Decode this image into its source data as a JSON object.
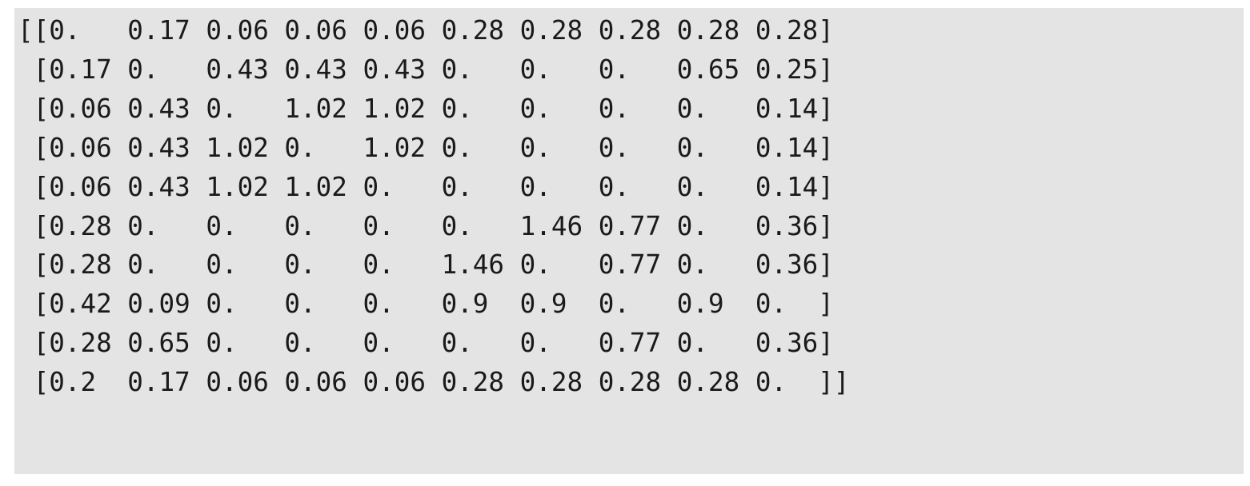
{
  "output": {
    "rows": [
      "[[0.   0.17 0.06 0.06 0.06 0.28 0.28 0.28 0.28 0.28]",
      " [0.17 0.   0.43 0.43 0.43 0.   0.   0.   0.65 0.25]",
      " [0.06 0.43 0.   1.02 1.02 0.   0.   0.   0.   0.14]",
      " [0.06 0.43 1.02 0.   1.02 0.   0.   0.   0.   0.14]",
      " [0.06 0.43 1.02 1.02 0.   0.   0.   0.   0.   0.14]",
      " [0.28 0.   0.   0.   0.   0.   1.46 0.77 0.   0.36]",
      " [0.28 0.   0.   0.   0.   1.46 0.   0.77 0.   0.36]",
      " [0.42 0.09 0.   0.   0.   0.9  0.9  0.   0.9  0.  ]",
      " [0.28 0.65 0.   0.   0.   0.   0.   0.77 0.   0.36]",
      " [0.2  0.17 0.06 0.06 0.06 0.28 0.28 0.28 0.28 0.  ]]"
    ]
  },
  "colors": {
    "background": "#e4e4e4",
    "text": "#1a1a1a"
  }
}
